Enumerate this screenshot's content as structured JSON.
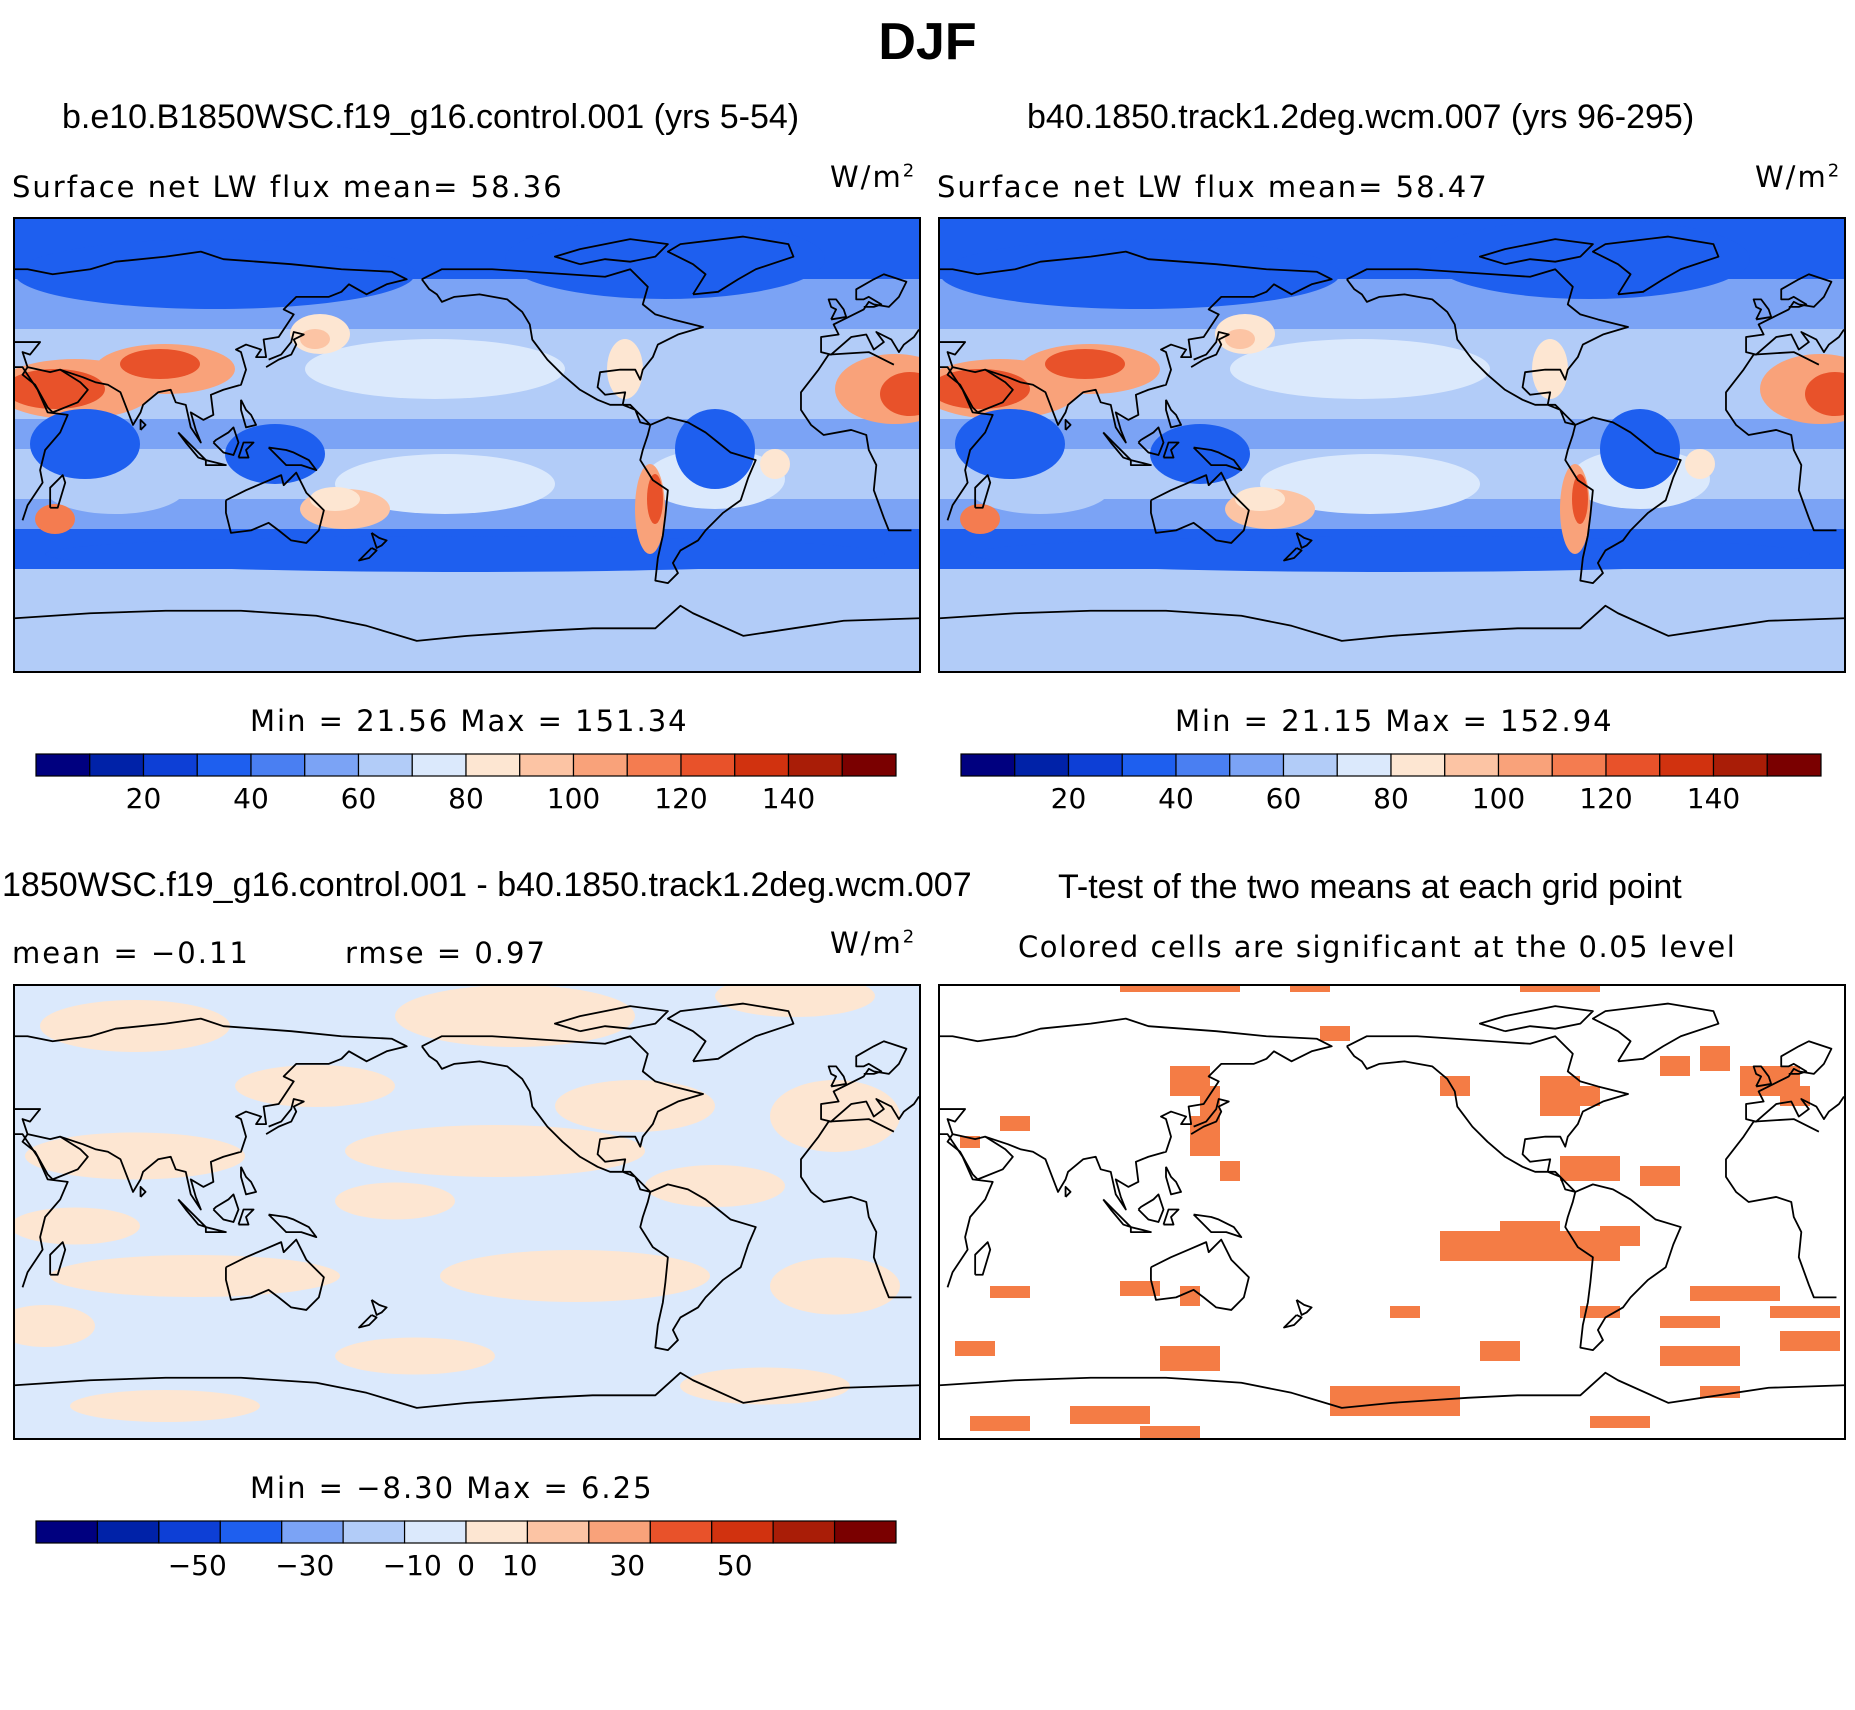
{
  "title": "DJF",
  "panels": {
    "p1": {
      "case_title": "b.e10.B1850WSC.f19_g16.control.001 (yrs 5-54)",
      "stat_line": "Surface  net  LW  flux mean=   58.36",
      "units": "W/m",
      "units_exp": "2",
      "minmax": "Min  =   21.56  Max  =  151.34"
    },
    "p2": {
      "case_title": "b40.1850.track1.2deg.wcm.007 (yrs 96-295)",
      "stat_line": "Surface  net  LW  flux mean=   58.47",
      "units": "W/m",
      "units_exp": "2",
      "minmax": "Min  =   21.15  Max  =  152.94"
    },
    "p3": {
      "case_title": "1850WSC.f19_g16.control.001 - b40.1850.track1.2deg.wcm.007",
      "mean_line": "mean  =   −0.11",
      "rmse_line": "rmse  =    0.97",
      "units": "W/m",
      "units_exp": "2",
      "minmax": "Min  =   −8.30  Max  =    6.25"
    },
    "p4": {
      "case_title": "T-test of the two means at each grid point",
      "subtitle": "Colored cells are significant at the 0.05 level"
    }
  },
  "chart_data": [
    {
      "type": "heatmap",
      "title": "b.e10.B1850WSC.f19_g16.control.001 (yrs 5-54)",
      "variable": "Surface net LW flux",
      "units": "W/m2",
      "mean": 58.36,
      "min": 21.56,
      "max": 151.34,
      "colorbar": {
        "levels": [
          10,
          20,
          30,
          40,
          50,
          60,
          70,
          80,
          90,
          100,
          110,
          120,
          130,
          140,
          150
        ],
        "tick_labels": [
          "20",
          "40",
          "60",
          "80",
          "100",
          "120",
          "140"
        ],
        "tick_values": [
          20,
          40,
          60,
          80,
          100,
          120,
          140
        ],
        "range": [
          0,
          160
        ]
      }
    },
    {
      "type": "heatmap",
      "title": "b40.1850.track1.2deg.wcm.007 (yrs 96-295)",
      "variable": "Surface net LW flux",
      "units": "W/m2",
      "mean": 58.47,
      "min": 21.15,
      "max": 152.94,
      "colorbar": {
        "levels": [
          10,
          20,
          30,
          40,
          50,
          60,
          70,
          80,
          90,
          100,
          110,
          120,
          130,
          140,
          150
        ],
        "tick_labels": [
          "20",
          "40",
          "60",
          "80",
          "100",
          "120",
          "140"
        ],
        "tick_values": [
          20,
          40,
          60,
          80,
          100,
          120,
          140
        ],
        "range": [
          0,
          160
        ]
      }
    },
    {
      "type": "heatmap",
      "title": "1850WSC.f19_g16.control.001 - b40.1850.track1.2deg.wcm.007",
      "units": "W/m2",
      "mean": -0.11,
      "rmse": 0.97,
      "min": -8.3,
      "max": 6.25,
      "colorbar": {
        "levels": [
          -60,
          -50,
          -40,
          -30,
          -20,
          -10,
          0,
          10,
          20,
          30,
          40,
          50,
          60
        ],
        "tick_labels": [
          "−50",
          "−30",
          "−10",
          "0",
          "10",
          "30",
          "50"
        ],
        "tick_values": [
          -50,
          -30,
          -10,
          0,
          10,
          30,
          50
        ],
        "range": [
          -80,
          80
        ]
      }
    },
    {
      "type": "heatmap",
      "title": "T-test of the two means at each grid point",
      "subtitle": "Colored cells are significant at the 0.05 level",
      "significance_level": 0.05
    }
  ],
  "colors": {
    "scale": [
      "#00007f",
      "#0022a8",
      "#0d3fd6",
      "#1e5fef",
      "#4a7ff2",
      "#7ba3f5",
      "#b2ccf8",
      "#dbe9fc",
      "#fde6d2",
      "#fcc4a4",
      "#f9a27a",
      "#f47c50",
      "#e8522a",
      "#d1320f",
      "#a91d07",
      "#7a0000"
    ],
    "significance": "#f47c45",
    "coast": "#000000"
  }
}
